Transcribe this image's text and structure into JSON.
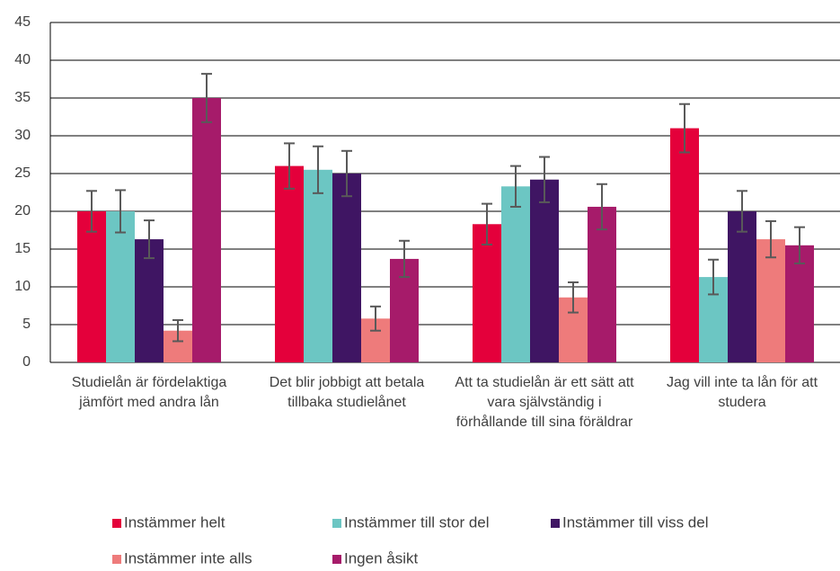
{
  "chart_data": {
    "type": "bar",
    "categories": [
      "Studielån är fördelaktiga jämfört med andra lån",
      "Det blir jobbigt att betala tillbaka studielånet",
      "Att ta studielån är ett sätt att vara självständig i förhållande till sina föräldrar",
      "Jag vill inte ta lån för att studera"
    ],
    "series": [
      {
        "name": "Instämmer helt",
        "color": "#e4003b",
        "values": [
          20,
          26,
          18.3,
          31
        ],
        "errors": [
          2.7,
          3,
          2.7,
          3.2
        ]
      },
      {
        "name": "Instämmer till stor del",
        "color": "#6cc6c3",
        "values": [
          20,
          25.5,
          23.3,
          11.3
        ],
        "errors": [
          2.8,
          3.1,
          2.7,
          2.3
        ]
      },
      {
        "name": "Instämmer till viss del",
        "color": "#3f1563",
        "values": [
          16.3,
          25,
          24.2,
          20
        ],
        "errors": [
          2.5,
          3,
          3,
          2.7
        ]
      },
      {
        "name": "Instämmer inte alls",
        "color": "#ee7b7b",
        "values": [
          4.2,
          5.8,
          8.6,
          16.3
        ],
        "errors": [
          1.4,
          1.6,
          2,
          2.4
        ]
      },
      {
        "name": "Ingen åsikt",
        "color": "#a61b6a",
        "values": [
          35,
          13.7,
          20.6,
          15.5
        ],
        "errors": [
          3.2,
          2.4,
          3,
          2.4
        ]
      }
    ],
    "ylim": [
      0,
      45
    ],
    "yticks": [
      0,
      5,
      10,
      15,
      20,
      25,
      30,
      35,
      40,
      45
    ],
    "grid": true,
    "legend": "bottom"
  }
}
